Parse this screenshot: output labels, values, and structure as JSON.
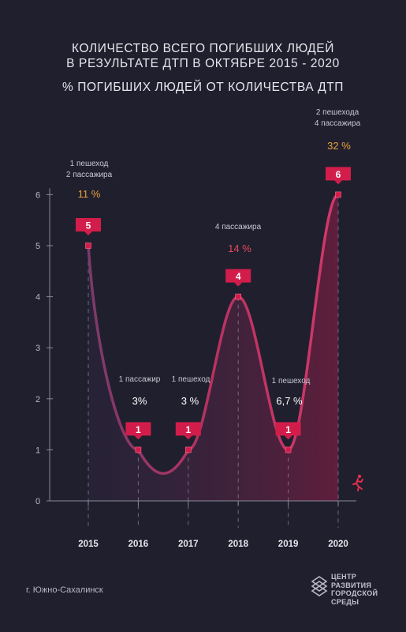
{
  "title": {
    "line1": "КОЛИЧЕСТВО ВСЕГО ПОГИБШИХ ЛЮДЕЙ",
    "line2": "В РЕЗУЛЬТАТЕ ДТП В ОКТЯБРЕ 2015 - 2020",
    "subtitle": "% ПОГИБШИХ ЛЮДЕЙ ОТ КОЛИЧЕСТВА ДТП"
  },
  "annotations": {
    "y2015": {
      "line1": "1 пешеход",
      "line2": "2  пассажира",
      "pct": "11 %"
    },
    "y2016": {
      "line1": "1  пассажир",
      "pct": "3%"
    },
    "y2017": {
      "line1": "1  пешеход",
      "pct": "3 %"
    },
    "y2018": {
      "line1": "4  пассажира",
      "pct": "14 %"
    },
    "y2019": {
      "line1": "1  пешеход",
      "pct": "6,7 %"
    },
    "y2020": {
      "line1": "2  пешехода",
      "line2": "4 пассажира",
      "pct": "32 %"
    }
  },
  "footer": {
    "city": "г. Южно-Сахалинск",
    "logo_lines": [
      "ЦЕНТР",
      "РАЗВИТИЯ",
      "ГОРОДСКОЙ",
      "СРЕДЫ"
    ]
  },
  "colors": {
    "background": "#201f2e",
    "line": "#b0305a",
    "label_box": "#d21d4b",
    "pct_orange": "#e8a03c",
    "pct_red": "#e64a5a",
    "pct_white": "#ffffff",
    "axis": "#8a8a9a"
  },
  "chart_data": {
    "type": "line",
    "title": "КОЛИЧЕСТВО ВСЕГО ПОГИБШИХ ЛЮДЕЙ В РЕЗУЛЬТАТЕ ДТП В ОКТЯБРЕ 2015 - 2020",
    "subtitle": "% ПОГИБШИХ ЛЮДЕЙ ОТ КОЛИЧЕСТВА ДТП",
    "categories": [
      "2015",
      "2016",
      "2017",
      "2018",
      "2019",
      "2020"
    ],
    "values": [
      5,
      1,
      1,
      4,
      1,
      6
    ],
    "percent_labels": [
      "11 %",
      "3%",
      "3 %",
      "14 %",
      "6,7 %",
      "32 %"
    ],
    "yticks": [
      0,
      1,
      2,
      3,
      4,
      5,
      6
    ],
    "ylim": [
      0,
      6
    ],
    "xlabel": "",
    "ylabel": "",
    "grid": false,
    "smooth": true,
    "area_fill": true
  }
}
